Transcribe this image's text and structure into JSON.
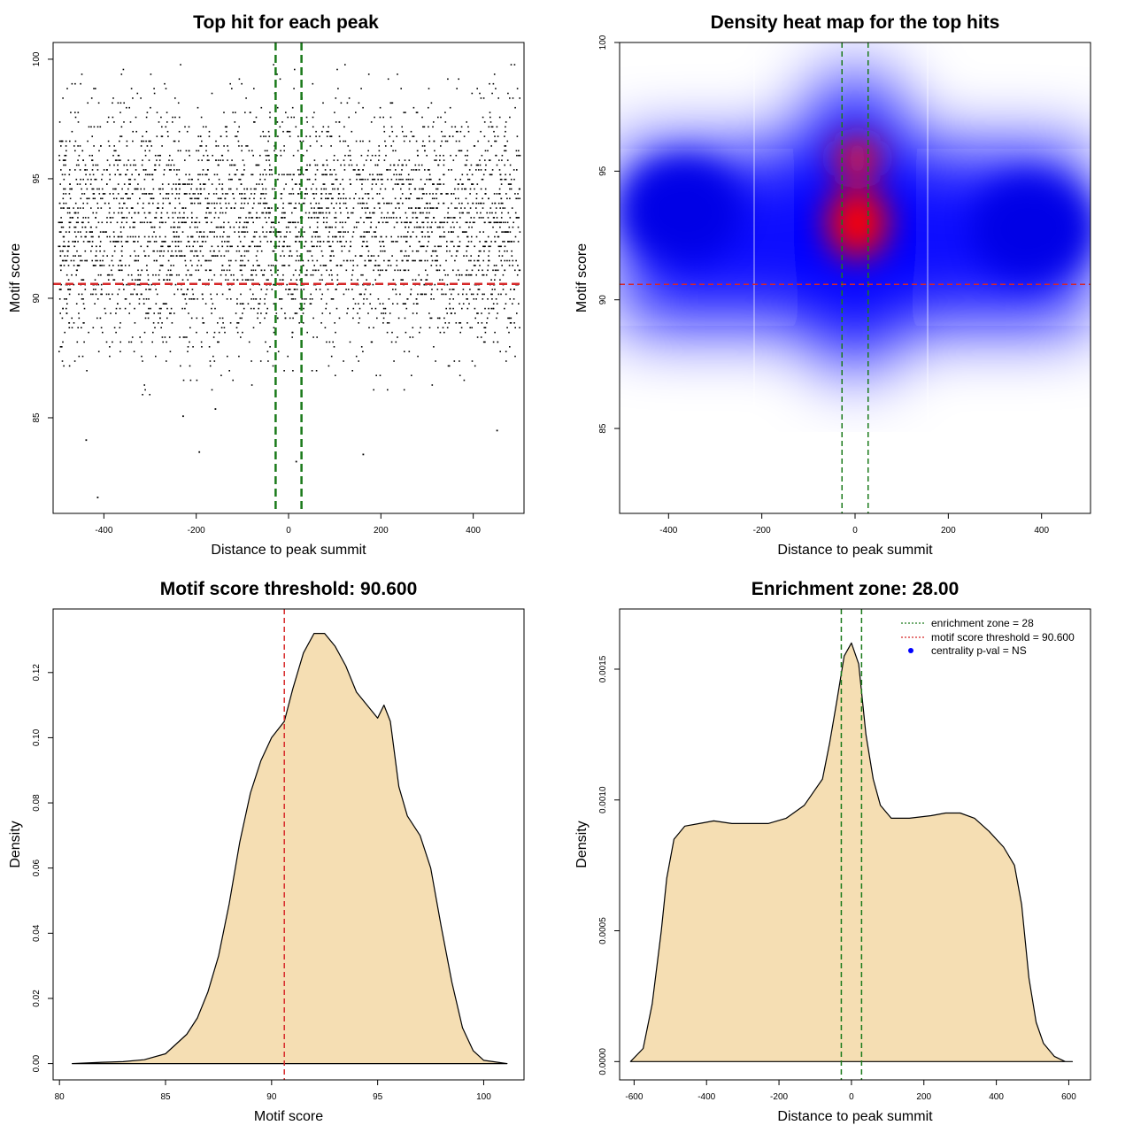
{
  "chart_data": [
    {
      "type": "scatter",
      "title": "Top hit for each peak",
      "xlabel": "Distance to peak summit",
      "ylabel": "Motif score",
      "xlim": [
        -510,
        510
      ],
      "ylim": [
        81,
        100.7
      ],
      "xticks": [
        -400,
        -200,
        0,
        200,
        400
      ],
      "yticks": [
        85,
        90,
        95,
        100
      ],
      "point_color": "#000000",
      "point_summary": {
        "x_range": [
          -500,
          500
        ],
        "y_dense_range": [
          88,
          98.5
        ],
        "y_mode": 93,
        "outliers": [
          [
            -415,
            81.7
          ],
          [
            -440,
            84.1
          ],
          [
            -195,
            83.6
          ],
          [
            15,
            83.2
          ],
          [
            160,
            83.5
          ],
          [
            450,
            84.5
          ],
          [
            -230,
            85.1
          ],
          [
            -160,
            85.4
          ]
        ],
        "approx_count": 9000
      },
      "hlines": [
        {
          "y": 90.6,
          "color": "#d62728",
          "style": "dashed"
        }
      ],
      "vlines": [
        {
          "x": -28,
          "color": "#1a7a1a",
          "style": "dashed"
        },
        {
          "x": 28,
          "color": "#1a7a1a",
          "style": "dashed"
        }
      ]
    },
    {
      "type": "heatmap",
      "title": "Density heat map for the top hits",
      "xlabel": "Distance to peak summit",
      "ylabel": "Motif score",
      "xlim": [
        -505,
        505
      ],
      "ylim": [
        81.7,
        100
      ],
      "xticks": [
        -400,
        -200,
        0,
        200,
        400
      ],
      "yticks": [
        85,
        90,
        95,
        100
      ],
      "colors": [
        "#ffffff",
        "#0000ff",
        "#ff0000"
      ],
      "density_peaks": [
        {
          "x": 5,
          "y": 93.0,
          "level": "high"
        },
        {
          "x": 5,
          "y": 95.5,
          "level": "medium"
        },
        {
          "x": -370,
          "y": 93.5,
          "level": "low"
        },
        {
          "x": 380,
          "y": 92.8,
          "level": "low"
        }
      ],
      "hlines": [
        {
          "y": 90.6,
          "color": "#d62728",
          "style": "dashed"
        }
      ],
      "vlines": [
        {
          "x": -28,
          "color": "#1a7a1a",
          "style": "dashed"
        },
        {
          "x": 28,
          "color": "#1a7a1a",
          "style": "dashed"
        }
      ]
    },
    {
      "type": "area",
      "title": "Motif score threshold: 90.600",
      "xlabel": "Motif score",
      "ylabel": "Density",
      "xlim": [
        79.7,
        101.9
      ],
      "ylim": [
        -0.005,
        0.1395
      ],
      "xticks": [
        80,
        85,
        90,
        95,
        100
      ],
      "yticks": [
        0.0,
        0.02,
        0.04,
        0.06,
        0.08,
        0.1,
        0.12
      ],
      "ytick_labels": [
        "0.00",
        "0.02",
        "0.04",
        "0.06",
        "0.08",
        "0.10",
        "0.12"
      ],
      "fill_color": "#f5deb3",
      "line_color": "#000000",
      "x": [
        80.6,
        82,
        83,
        84,
        85,
        85.5,
        86,
        86.5,
        87,
        87.5,
        88,
        88.5,
        89,
        89.5,
        90,
        90.6,
        91,
        91.5,
        92,
        92.5,
        93,
        93.5,
        94,
        94.5,
        95,
        95.3,
        95.6,
        96,
        96.4,
        97,
        97.5,
        98,
        98.5,
        99,
        99.5,
        100,
        101.1
      ],
      "y": [
        0.0,
        0.0004,
        0.0006,
        0.0012,
        0.003,
        0.006,
        0.009,
        0.014,
        0.022,
        0.033,
        0.049,
        0.068,
        0.083,
        0.093,
        0.1,
        0.105,
        0.115,
        0.126,
        0.132,
        0.132,
        0.128,
        0.122,
        0.114,
        0.11,
        0.106,
        0.11,
        0.105,
        0.085,
        0.076,
        0.07,
        0.06,
        0.042,
        0.025,
        0.011,
        0.004,
        0.001,
        0.0
      ]
    },
    {
      "type": "area",
      "title": "Enrichment zone: 28.00",
      "xlabel": "Distance to peak summit",
      "ylabel": "Density",
      "xlim": [
        -640,
        660
      ],
      "ylim": [
        -7e-05,
        0.00173
      ],
      "xticks": [
        -600,
        -400,
        -200,
        0,
        200,
        400,
        600
      ],
      "yticks": [
        0.0,
        0.0005,
        0.001,
        0.0015
      ],
      "ytick_labels": [
        "0.0000",
        "0.0005",
        "0.0010",
        "0.0015"
      ],
      "fill_color": "#f5deb3",
      "line_color": "#000000",
      "x": [
        -610,
        -575,
        -550,
        -525,
        -510,
        -490,
        -460,
        -420,
        -380,
        -330,
        -280,
        -230,
        -180,
        -130,
        -80,
        -60,
        -40,
        -20,
        0,
        20,
        40,
        60,
        80,
        110,
        160,
        220,
        260,
        300,
        340,
        380,
        420,
        450,
        470,
        490,
        510,
        530,
        560,
        590,
        610
      ],
      "y": [
        0.0,
        5e-05,
        0.00022,
        0.0005,
        0.0007,
        0.00085,
        0.0009,
        0.00091,
        0.00092,
        0.00091,
        0.00091,
        0.00091,
        0.00093,
        0.00098,
        0.00108,
        0.00122,
        0.00138,
        0.00155,
        0.0016,
        0.00152,
        0.00125,
        0.00108,
        0.00098,
        0.00093,
        0.00093,
        0.00094,
        0.00095,
        0.00095,
        0.00093,
        0.00088,
        0.00082,
        0.00075,
        0.0006,
        0.00032,
        0.00015,
        7e-05,
        2e-05,
        0.0,
        0.0
      ],
      "vlines": [
        {
          "x": -28,
          "color": "#1a7a1a",
          "style": "dashed"
        },
        {
          "x": 28,
          "color": "#1a7a1a",
          "style": "dashed"
        }
      ],
      "legend": {
        "position": "top-right",
        "entries": [
          {
            "label": "enrichment zone = 28",
            "color": "#1a7a1a",
            "style": "dotted-line"
          },
          {
            "label": "motif score threshold = 90.600",
            "color": "#d62728",
            "style": "dotted-line"
          },
          {
            "label": "centrality p-val = NS",
            "color": "#0000ff",
            "style": "point"
          }
        ]
      }
    }
  ]
}
